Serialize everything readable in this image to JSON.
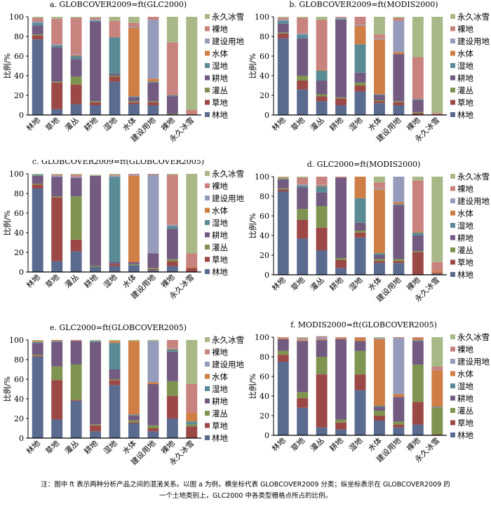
{
  "legend": [
    "林地",
    "草地",
    "灌丛",
    "耕地",
    "湿地",
    "水体",
    "建设用地",
    "裸地",
    "永久冰雪"
  ],
  "colors": [
    "#5b6a8f",
    "#9c4846",
    "#7f9450",
    "#725a80",
    "#5a8b95",
    "#cf7e45",
    "#959bba",
    "#c9837f",
    "#a9b887"
  ],
  "ylabel": "比例/%",
  "yticks": [
    "0",
    "20",
    "40",
    "60",
    "80",
    "100"
  ],
  "note": {
    "line1": "注：图中 ft 表示两种分析产品之间的混淆关系。以图 a 为例，横坐标代表 GLOBCOVER2009 分类；纵坐标表示在 GLOBCOVER2009 的",
    "line2": "一个土地类别上，GLC2000 中各类型栅格点所占的比例。"
  },
  "chart_data": [
    {
      "type": "bar",
      "stacked": true,
      "title": "a. GLOBCOVER2009=ft(GLC2000)",
      "xlabel": "",
      "ylabel": "比例/%",
      "ylim": [
        0,
        100
      ],
      "categories": [
        "林地",
        "草地",
        "灌丛",
        "耕地",
        "湿地",
        "水体",
        "建设用地",
        "裸地",
        "永久冰雪"
      ],
      "series": [
        {
          "name": "林地",
          "values": [
            77,
            6,
            11,
            10,
            34,
            11,
            10,
            0,
            0
          ]
        },
        {
          "name": "草地",
          "values": [
            4,
            27,
            20,
            3,
            5,
            2,
            3,
            0,
            0
          ]
        },
        {
          "name": "灌丛",
          "values": [
            1,
            1,
            8,
            1,
            1,
            1,
            1,
            1,
            0
          ]
        },
        {
          "name": "耕地",
          "values": [
            9,
            35,
            18,
            81,
            2,
            4,
            19,
            18,
            0
          ]
        },
        {
          "name": "湿地",
          "values": [
            3,
            2,
            3,
            1,
            37,
            1,
            1,
            1,
            0
          ]
        },
        {
          "name": "水体",
          "values": [
            0,
            0,
            1,
            0,
            0,
            70,
            3,
            0,
            0
          ]
        },
        {
          "name": "建设用地",
          "values": [
            1,
            1,
            1,
            1,
            0,
            1,
            60,
            0,
            0
          ]
        },
        {
          "name": "裸地",
          "values": [
            4,
            26,
            37,
            2,
            17,
            4,
            3,
            54,
            5
          ]
        },
        {
          "name": "永久冰雪",
          "values": [
            1,
            2,
            1,
            1,
            4,
            6,
            0,
            26,
            95
          ]
        }
      ]
    },
    {
      "type": "bar",
      "stacked": true,
      "title": "b. GLOBCOVER2009=ft(MODIS2000)",
      "xlabel": "",
      "ylabel": "比例/%",
      "ylim": [
        0,
        100
      ],
      "categories": [
        "林地",
        "草地",
        "灌丛",
        "耕地",
        "湿地",
        "水体",
        "建设用地",
        "裸地",
        "永久冰雪"
      ],
      "series": [
        {
          "name": "林地",
          "values": [
            78,
            26,
            14,
            10,
            24,
            12,
            10,
            0,
            0
          ]
        },
        {
          "name": "草地",
          "values": [
            5,
            9,
            5,
            7,
            6,
            2,
            3,
            2,
            0
          ]
        },
        {
          "name": "灌丛",
          "values": [
            1,
            5,
            2,
            1,
            3,
            1,
            1,
            1,
            0
          ]
        },
        {
          "name": "耕地",
          "values": [
            9,
            38,
            14,
            79,
            10,
            5,
            48,
            12,
            0
          ]
        },
        {
          "name": "湿地",
          "values": [
            3,
            4,
            10,
            1,
            29,
            1,
            0,
            1,
            0
          ]
        },
        {
          "name": "水体",
          "values": [
            0,
            0,
            1,
            0,
            19,
            56,
            2,
            0,
            0
          ]
        },
        {
          "name": "建设用地",
          "values": [
            1,
            1,
            0,
            1,
            1,
            1,
            32,
            0,
            0
          ]
        },
        {
          "name": "裸地",
          "values": [
            2,
            16,
            51,
            1,
            8,
            4,
            3,
            43,
            2
          ]
        },
        {
          "name": "永久冰雪",
          "values": [
            1,
            1,
            3,
            0,
            0,
            18,
            1,
            41,
            98
          ]
        }
      ]
    },
    {
      "type": "bar",
      "stacked": true,
      "title": "c. GLOBCOVER2009=ft(GLOBCOVER2005)",
      "xlabel": "",
      "ylabel": "比例/%",
      "ylim": [
        0,
        100
      ],
      "categories": [
        "林地",
        "草地",
        "灌丛",
        "耕地",
        "湿地",
        "水体",
        "建设用地",
        "裸地",
        "永久冰雪"
      ],
      "series": [
        {
          "name": "林地",
          "values": [
            85,
            11,
            21,
            5,
            6,
            7,
            2,
            6,
            0
          ]
        },
        {
          "name": "草地",
          "values": [
            4,
            65,
            12,
            0,
            2,
            0,
            1,
            5,
            4
          ]
        },
        {
          "name": "灌丛",
          "values": [
            1,
            1,
            44,
            1,
            0,
            1,
            1,
            2,
            0
          ]
        },
        {
          "name": "耕地",
          "values": [
            8,
            20,
            19,
            92,
            2,
            2,
            15,
            31,
            0
          ]
        },
        {
          "name": "湿地",
          "values": [
            1,
            0,
            0,
            0,
            87,
            0,
            0,
            3,
            0
          ]
        },
        {
          "name": "水体",
          "values": [
            0,
            0,
            0,
            0,
            0,
            88,
            0,
            0,
            1
          ]
        },
        {
          "name": "建设用地",
          "values": [
            0,
            1,
            1,
            0,
            1,
            1,
            80,
            1,
            0
          ]
        },
        {
          "name": "裸地",
          "values": [
            0,
            1,
            2,
            0,
            1,
            1,
            1,
            51,
            14
          ]
        },
        {
          "name": "永久冰雪",
          "values": [
            1,
            1,
            1,
            1,
            1,
            0,
            0,
            1,
            81
          ]
        }
      ]
    },
    {
      "type": "bar",
      "stacked": true,
      "title": "d. GLC2000=ft(MODIS2000)",
      "xlabel": "",
      "ylabel": "比例/%",
      "ylim": [
        0,
        100
      ],
      "categories": [
        "林地",
        "草地",
        "灌丛",
        "耕地",
        "湿地",
        "水体",
        "建设用地",
        "裸地",
        "永久冰雪"
      ],
      "series": [
        {
          "name": "林地",
          "values": [
            85,
            37,
            25,
            7,
            38,
            12,
            12,
            0,
            1
          ]
        },
        {
          "name": "草地",
          "values": [
            2,
            19,
            23,
            8,
            5,
            2,
            2,
            23,
            1
          ]
        },
        {
          "name": "灌丛",
          "values": [
            1,
            11,
            22,
            2,
            2,
            2,
            2,
            1,
            0
          ]
        },
        {
          "name": "耕地",
          "values": [
            9,
            22,
            14,
            82,
            8,
            4,
            55,
            16,
            0
          ]
        },
        {
          "name": "湿地",
          "values": [
            1,
            2,
            6,
            0,
            25,
            2,
            1,
            3,
            0
          ]
        },
        {
          "name": "水体",
          "values": [
            1,
            0,
            1,
            0,
            22,
            65,
            2,
            1,
            2
          ]
        },
        {
          "name": "建设用地",
          "values": [
            0,
            1,
            1,
            0,
            0,
            1,
            26,
            0,
            0
          ]
        },
        {
          "name": "裸地",
          "values": [
            0,
            7,
            8,
            1,
            0,
            6,
            0,
            52,
            9
          ]
        },
        {
          "name": "永久冰雪",
          "values": [
            1,
            1,
            0,
            0,
            0,
            6,
            0,
            4,
            87
          ]
        }
      ]
    },
    {
      "type": "bar",
      "stacked": true,
      "title": "e. GLC2000=ft(GLOBCOVER2005)",
      "xlabel": "",
      "ylabel": "比例/%",
      "ylim": [
        0,
        100
      ],
      "categories": [
        "林地",
        "草地",
        "灌丛",
        "耕地",
        "湿地",
        "水体",
        "建设用地",
        "裸地",
        "永久冰雪"
      ],
      "series": [
        {
          "name": "林地",
          "values": [
            83,
            19,
            38,
            7,
            54,
            15,
            7,
            20,
            0
          ]
        },
        {
          "name": "草地",
          "values": [
            1,
            40,
            1,
            6,
            5,
            1,
            3,
            23,
            12
          ]
        },
        {
          "name": "灌丛",
          "values": [
            1,
            14,
            36,
            1,
            1,
            2,
            3,
            15,
            2
          ]
        },
        {
          "name": "耕地",
          "values": [
            12,
            25,
            24,
            84,
            10,
            5,
            42,
            30,
            0
          ]
        },
        {
          "name": "湿地",
          "values": [
            1,
            1,
            0,
            1,
            27,
            1,
            0,
            2,
            3
          ]
        },
        {
          "name": "水体",
          "values": [
            1,
            1,
            0,
            0,
            2,
            75,
            2,
            1,
            9
          ]
        },
        {
          "name": "建设用地",
          "values": [
            0,
            0,
            0,
            0,
            0,
            0,
            42,
            1,
            0
          ]
        },
        {
          "name": "裸地",
          "values": [
            0,
            0,
            1,
            0,
            0,
            0,
            0,
            8,
            29
          ]
        },
        {
          "name": "永久冰雪",
          "values": [
            1,
            0,
            0,
            1,
            1,
            1,
            1,
            0,
            45
          ]
        }
      ]
    },
    {
      "type": "bar",
      "stacked": true,
      "title": "f. MODIS2000=ft(GLOBCOVER2005)",
      "xlabel": "",
      "ylabel": "比例/%",
      "ylim": [
        0,
        100
      ],
      "categories": [
        "林地",
        "草地",
        "灌丛",
        "耕地",
        "湿地",
        "水体",
        "建设用地",
        "裸地",
        "永久冰雪"
      ],
      "series": [
        {
          "name": "林地",
          "values": [
            75,
            28,
            8,
            6,
            46,
            15,
            8,
            11,
            0
          ]
        },
        {
          "name": "草地",
          "values": [
            7,
            10,
            54,
            7,
            16,
            5,
            3,
            23,
            1
          ]
        },
        {
          "name": "灌丛",
          "values": [
            4,
            6,
            18,
            3,
            24,
            5,
            3,
            38,
            27
          ]
        },
        {
          "name": "耕地",
          "values": [
            12,
            52,
            17,
            82,
            10,
            4,
            25,
            24,
            0
          ]
        },
        {
          "name": "湿地",
          "values": [
            0,
            0,
            0,
            0,
            0,
            1,
            0,
            1,
            1
          ]
        },
        {
          "name": "水体",
          "values": [
            1,
            1,
            1,
            1,
            3,
            68,
            3,
            2,
            37
          ]
        },
        {
          "name": "建设用地",
          "values": [
            0,
            1,
            2,
            0,
            0,
            1,
            57,
            0,
            0
          ]
        },
        {
          "name": "裸地",
          "values": [
            1,
            1,
            1,
            1,
            1,
            0,
            1,
            1,
            4
          ]
        },
        {
          "name": "永久冰雪",
          "values": [
            0,
            1,
            0,
            0,
            0,
            1,
            0,
            0,
            30
          ]
        }
      ]
    }
  ]
}
